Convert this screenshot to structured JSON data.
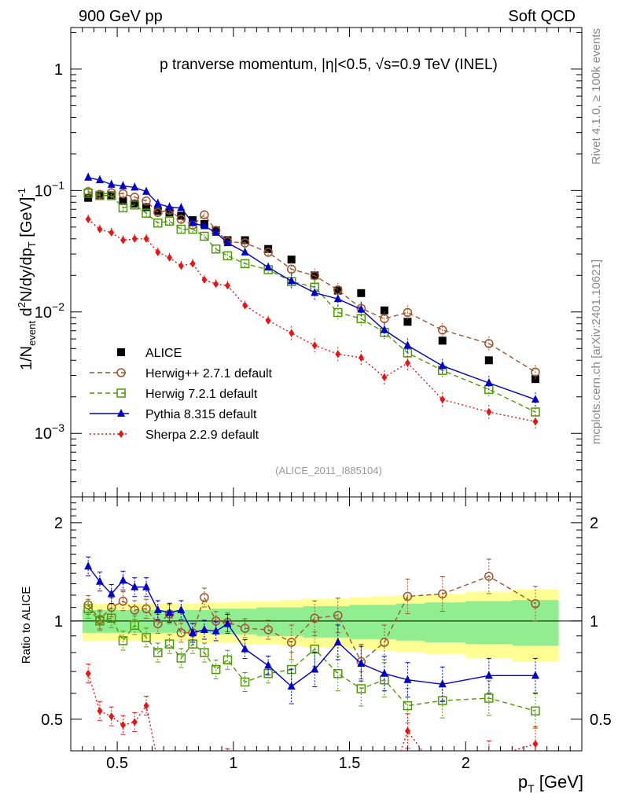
{
  "header": {
    "left": "900 GeV pp",
    "right": "Soft QCD"
  },
  "side_labels": {
    "rivet": "Rivet 4.1.0, ≥ 100k events",
    "mcplots": "mcplots.cern.ch [arXiv:2401.10621]"
  },
  "chart_data": [
    {
      "type": "scatter",
      "panel": "main",
      "title": "p tranverse momentum, |η|<0.5, √s=0.9 TeV (INEL)",
      "watermark": "(ALICE_2011_I885104)",
      "xlabel": "p_T [GeV]",
      "ylabel": "1/N_event d²N/dy/dp_T [GeV]⁻¹",
      "yscale": "log",
      "ylim": [
        0.0003,
        2.2
      ],
      "xlim": [
        0.3,
        2.5
      ],
      "ytick_labels": [
        "10⁻³",
        "10⁻²",
        "10⁻¹",
        "1"
      ],
      "ytick_values": [
        0.001,
        0.01,
        0.1,
        1
      ],
      "legend_position": "lower-left",
      "x": [
        0.375,
        0.425,
        0.475,
        0.525,
        0.575,
        0.625,
        0.675,
        0.725,
        0.775,
        0.825,
        0.875,
        0.925,
        0.975,
        1.05,
        1.15,
        1.25,
        1.35,
        1.45,
        1.55,
        1.65,
        1.75,
        1.9,
        2.1,
        2.3
      ],
      "series": [
        {
          "name": "ALICE",
          "style": "marker",
          "color": "#000000",
          "marker": "square-filled",
          "values": [
            0.087,
            0.092,
            0.09,
            0.082,
            0.078,
            0.073,
            0.068,
            0.066,
            0.062,
            0.057,
            0.053,
            0.047,
            0.039,
            0.039,
            0.033,
            0.027,
            0.02,
            0.015,
            0.0143,
            0.0103,
            0.0083,
            0.0058,
            0.004,
            0.0028
          ]
        },
        {
          "name": "Herwig++ 2.7.1 default",
          "style": "dashed",
          "color": "#a0522d",
          "marker": "circle-open",
          "values": [
            0.098,
            0.093,
            0.096,
            0.094,
            0.088,
            0.082,
            0.066,
            0.069,
            0.058,
            0.052,
            0.063,
            0.047,
            0.038,
            0.037,
            0.031,
            0.0225,
            0.0199,
            0.0152,
            0.0107,
            0.0088,
            0.0099,
            0.0071,
            0.0055,
            0.0032
          ]
        },
        {
          "name": "Herwig 7.2.1 default",
          "style": "dashed",
          "color": "#4e9a06",
          "marker": "square-open",
          "values": [
            0.095,
            0.091,
            0.091,
            0.072,
            0.076,
            0.065,
            0.054,
            0.056,
            0.048,
            0.048,
            0.042,
            0.033,
            0.029,
            0.025,
            0.0223,
            0.0178,
            0.016,
            0.0099,
            0.0088,
            0.0068,
            0.0046,
            0.0033,
            0.0023,
            0.0015
          ]
        },
        {
          "name": "Pythia 8.315 default",
          "style": "solid",
          "color": "#0000cc",
          "marker": "triangle-filled",
          "values": [
            0.128,
            0.122,
            0.112,
            0.109,
            0.106,
            0.098,
            0.078,
            0.073,
            0.072,
            0.054,
            0.051,
            0.045,
            0.037,
            0.031,
            0.0233,
            0.018,
            0.0144,
            0.0128,
            0.0105,
            0.0071,
            0.0053,
            0.0036,
            0.0026,
            0.0019
          ]
        },
        {
          "name": "Sherpa 2.2.9 default",
          "style": "dotted",
          "color": "#ee1111",
          "marker": "diamond-filled",
          "values": [
            0.058,
            0.048,
            0.045,
            0.039,
            0.04,
            0.04,
            0.031,
            0.028,
            0.024,
            0.025,
            0.0184,
            0.017,
            0.0165,
            0.0113,
            0.0085,
            0.0067,
            0.0053,
            0.0045,
            0.0042,
            0.0029,
            0.0038,
            0.0019,
            0.0015,
            0.00125
          ]
        }
      ]
    },
    {
      "type": "scatter",
      "panel": "ratio",
      "ylabel": "Ratio to ALICE",
      "xlabel": "p_T [GeV]",
      "yscale": "log",
      "ylim": [
        0.4,
        2.4
      ],
      "ytick_labels": [
        "0.5",
        "1",
        "2"
      ],
      "ytick_values": [
        0.5,
        1,
        2
      ],
      "xtick_labels": [
        "0.5",
        "1",
        "1.5",
        "2"
      ],
      "xtick_values": [
        0.5,
        1,
        1.5,
        2
      ],
      "reference_line": 1,
      "x": [
        0.375,
        0.425,
        0.475,
        0.525,
        0.575,
        0.625,
        0.675,
        0.725,
        0.775,
        0.825,
        0.875,
        0.925,
        0.975,
        1.05,
        1.15,
        1.25,
        1.35,
        1.45,
        1.55,
        1.65,
        1.75,
        1.9,
        2.1,
        2.3
      ],
      "band_inner": [
        0.08,
        0.08,
        0.08,
        0.08,
        0.08,
        0.08,
        0.08,
        0.08,
        0.08,
        0.08,
        0.08,
        0.09,
        0.09,
        0.09,
        0.1,
        0.1,
        0.11,
        0.11,
        0.12,
        0.12,
        0.13,
        0.14,
        0.15,
        0.16
      ],
      "band_outer": [
        0.13,
        0.13,
        0.13,
        0.13,
        0.13,
        0.13,
        0.13,
        0.13,
        0.13,
        0.13,
        0.14,
        0.14,
        0.14,
        0.15,
        0.15,
        0.16,
        0.17,
        0.17,
        0.18,
        0.19,
        0.2,
        0.21,
        0.23,
        0.25
      ],
      "series": [
        {
          "name": "Herwig++ 2.7.1 default",
          "style": "dashed",
          "color": "#a0522d",
          "marker": "circle-open",
          "values": [
            1.12,
            1.01,
            1.1,
            1.15,
            1.08,
            1.09,
            0.98,
            1.05,
            0.92,
            0.92,
            1.18,
            1.0,
            0.99,
            0.95,
            0.94,
            0.86,
            1.02,
            1.04,
            0.75,
            0.86,
            1.19,
            1.21,
            1.37,
            1.13
          ]
        },
        {
          "name": "Herwig 7.2.1 default",
          "style": "dashed",
          "color": "#4e9a06",
          "marker": "square-open",
          "values": [
            1.09,
            1.0,
            1.02,
            0.87,
            0.97,
            0.89,
            0.8,
            0.85,
            0.77,
            0.85,
            0.8,
            0.71,
            0.76,
            0.65,
            0.69,
            0.71,
            0.82,
            0.69,
            0.62,
            0.66,
            0.55,
            0.57,
            0.58,
            0.53
          ]
        },
        {
          "name": "Pythia 8.315 default",
          "style": "solid",
          "color": "#0000cc",
          "marker": "triangle-filled",
          "values": [
            1.47,
            1.32,
            1.21,
            1.33,
            1.27,
            1.27,
            1.08,
            1.06,
            1.08,
            0.92,
            0.94,
            0.93,
            0.98,
            0.82,
            0.73,
            0.63,
            0.71,
            0.86,
            0.74,
            0.69,
            0.66,
            0.64,
            0.68,
            0.68
          ]
        },
        {
          "name": "Sherpa 2.2.9 default",
          "style": "dotted",
          "color": "#ee1111",
          "marker": "diamond-filled",
          "values": [
            0.69,
            0.53,
            0.51,
            0.48,
            0.49,
            0.55,
            0.37,
            0.33,
            0.29,
            0.35,
            0.35,
            0.36,
            0.38,
            0.29,
            0.27,
            0.25,
            0.27,
            0.3,
            0.29,
            0.28,
            0.46,
            0.33,
            0.38,
            0.42
          ]
        }
      ]
    }
  ]
}
